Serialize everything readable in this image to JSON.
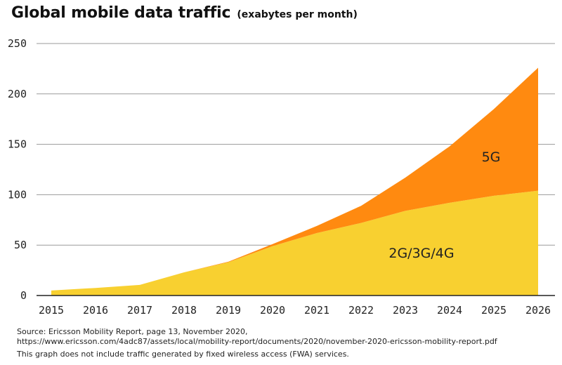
{
  "title": "Global mobile data traffic",
  "subtitle": "(exabytes per month)",
  "footer": {
    "source_line1": "Source: Ericsson Mobility Report, page 13, November 2020,",
    "source_line2": "https://www.ericsson.com/4adc87/assets/local/mobility-report/documents/2020/november-2020-ericsson-mobility-report.pdf",
    "note": "This graph does not include traffic generated by fixed wireless access (FWA) services."
  },
  "colors": {
    "series_2g3g4g": "#F8D030",
    "series_5g": "#FF8A10",
    "grid": "#9a9a9a",
    "axis": "#222222"
  },
  "chart_data": {
    "type": "area",
    "stacked": true,
    "title": "Global mobile data traffic",
    "subtitle": "(exabytes per month)",
    "xlabel": "",
    "ylabel": "",
    "x": [
      "2015",
      "2016",
      "2017",
      "2018",
      "2019",
      "2020",
      "2021",
      "2022",
      "2023",
      "2024",
      "2025",
      "2026"
    ],
    "ylim": [
      0,
      250
    ],
    "yticks": [
      "0",
      "50",
      "100",
      "150",
      "200",
      "250"
    ],
    "grid": true,
    "legend": "none",
    "series": [
      {
        "name": "2G/3G/4G",
        "values": [
          5,
          7.5,
          10.5,
          23,
          33,
          49,
          62,
          72,
          84,
          92,
          99,
          104
        ]
      },
      {
        "name": "5G",
        "values": [
          0,
          0,
          0,
          0,
          0.5,
          2,
          7,
          17,
          33,
          56,
          86,
          122
        ]
      }
    ]
  }
}
